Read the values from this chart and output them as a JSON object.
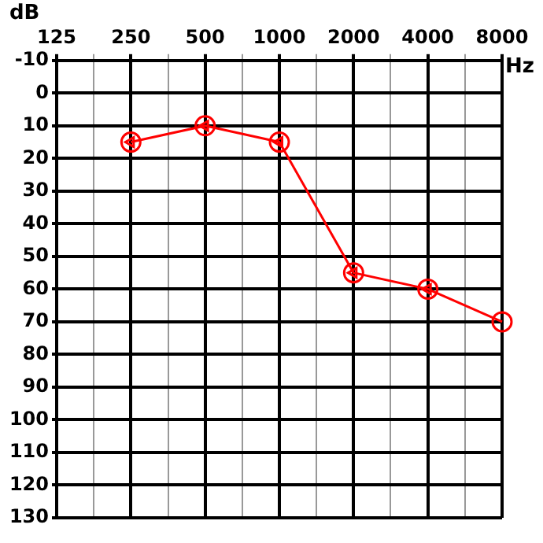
{
  "chart_data": {
    "type": "line",
    "xlabel": "Hz",
    "ylabel": "dB",
    "log": "x",
    "grid": true,
    "legend": false,
    "x": [
      250,
      500,
      1000,
      2000,
      4000,
      8000
    ],
    "xlim": [
      125,
      8000
    ],
    "xticks": [
      125,
      {
        "value": 177,
        "label": null
      },
      250,
      {
        "value": 354,
        "label": null
      },
      500,
      {
        "value": 707,
        "label": null
      },
      1000,
      {
        "value": 1414,
        "label": null
      },
      2000,
      {
        "value": 2828,
        "label": null
      },
      4000,
      {
        "value": 5657,
        "label": null
      },
      8000
    ],
    "ylim": [
      130,
      -10
    ],
    "yticks": [
      -10,
      0,
      10,
      20,
      30,
      40,
      50,
      60,
      70,
      80,
      90,
      100,
      110,
      120,
      130
    ],
    "series": [
      {
        "color": "#ff0000",
        "marker": "circle",
        "line_style": "solid",
        "values": [
          15,
          10,
          15,
          55,
          60,
          70
        ]
      },
      {
        "type": "scatter",
        "color": "#ff0000",
        "marker": "triangle",
        "x": [
          250,
          500,
          1000,
          2000,
          4000
        ],
        "values": [
          15,
          10,
          15,
          55,
          60
        ]
      }
    ]
  }
}
